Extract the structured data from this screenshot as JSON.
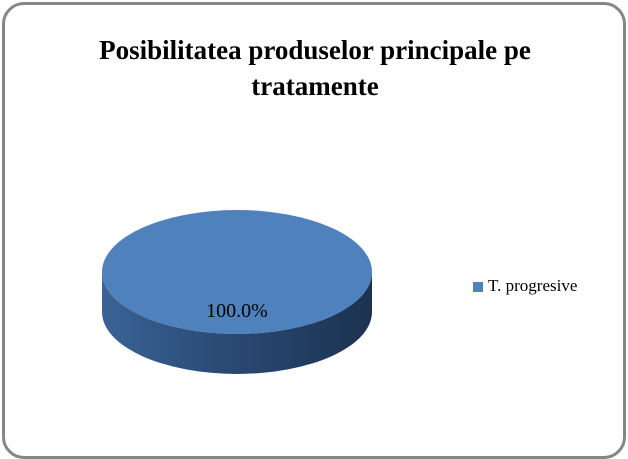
{
  "chart_data": {
    "type": "pie",
    "title": "Posibilitatea produselor principale pe tratamente",
    "categories": [
      "T. progresive"
    ],
    "values": [
      100
    ],
    "value_labels": [
      "100.0%"
    ],
    "colors": [
      "#4f81bd"
    ],
    "legend": "right"
  }
}
